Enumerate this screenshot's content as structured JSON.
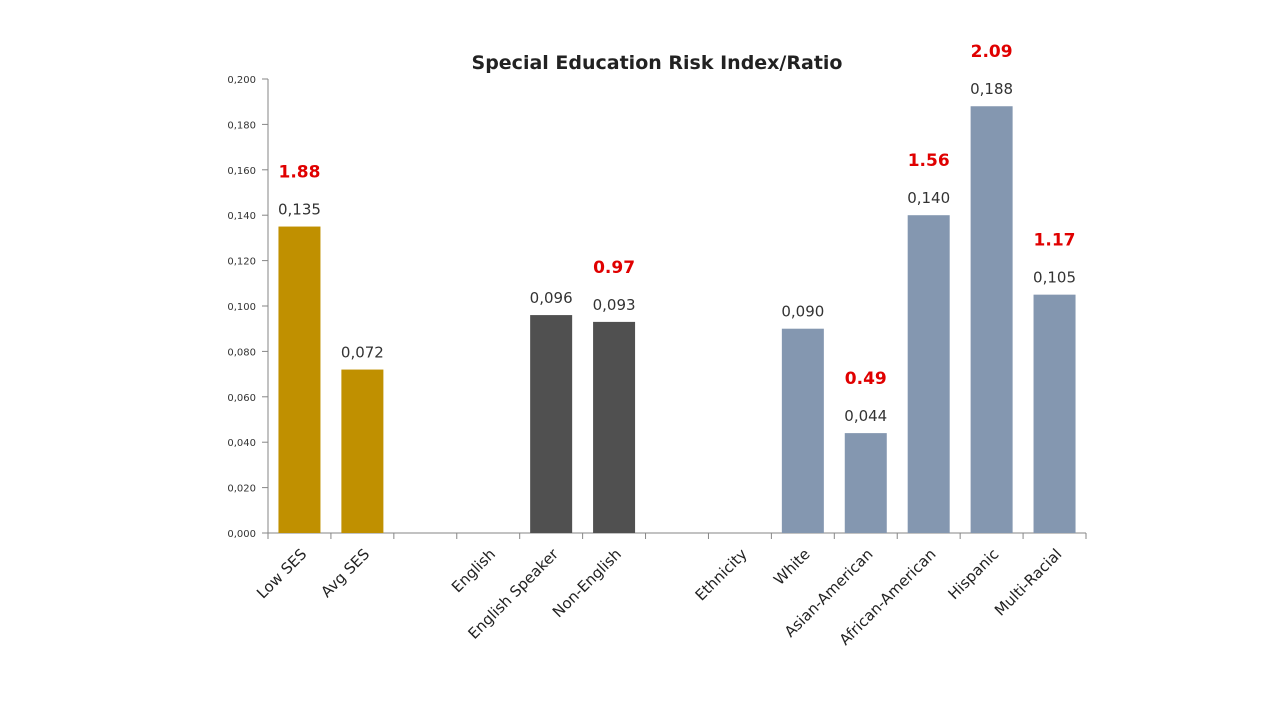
{
  "chart_data": {
    "type": "bar",
    "title": "Special Education Risk Index/Ratio",
    "xlabel": "",
    "ylabel": "",
    "ylim": [
      0,
      0.2
    ],
    "ytick_step": 0.02,
    "ytick_labels": [
      "0,000",
      "0,020",
      "0,040",
      "0,060",
      "0,080",
      "0,100",
      "0,120",
      "0,140",
      "0,160",
      "0,180",
      "0,200"
    ],
    "grid": false,
    "legend": "none",
    "categories": [
      "Low SES",
      "Avg SES",
      "",
      "English",
      "English Speaker",
      "Non-English",
      "",
      "Ethnicity",
      "White",
      "Asian-American",
      "African-American",
      "Hispanic",
      "Multi-Racial"
    ],
    "values": [
      0.135,
      0.072,
      null,
      null,
      0.096,
      0.093,
      null,
      null,
      0.09,
      0.044,
      0.14,
      0.188,
      0.105
    ],
    "value_labels": [
      "0,135",
      "0,072",
      "",
      "",
      "0,096",
      "0,093",
      "",
      "",
      "0,090",
      "0,044",
      "0,140",
      "0,188",
      "0,105"
    ],
    "ratio_labels": [
      "1.88",
      "",
      "",
      "",
      "",
      "0.97",
      "",
      "",
      "",
      "0.49",
      "1.56",
      "2.09",
      "1.17"
    ],
    "bar_colors": [
      "#c09000",
      "#c09000",
      "",
      "",
      "#505050",
      "#505050",
      "",
      "",
      "#8497b0",
      "#8497b0",
      "#8497b0",
      "#8497b0",
      "#8497b0"
    ],
    "colors": {
      "ratio_text": "#e00000",
      "axis": "#868686",
      "text": "#333333"
    }
  }
}
